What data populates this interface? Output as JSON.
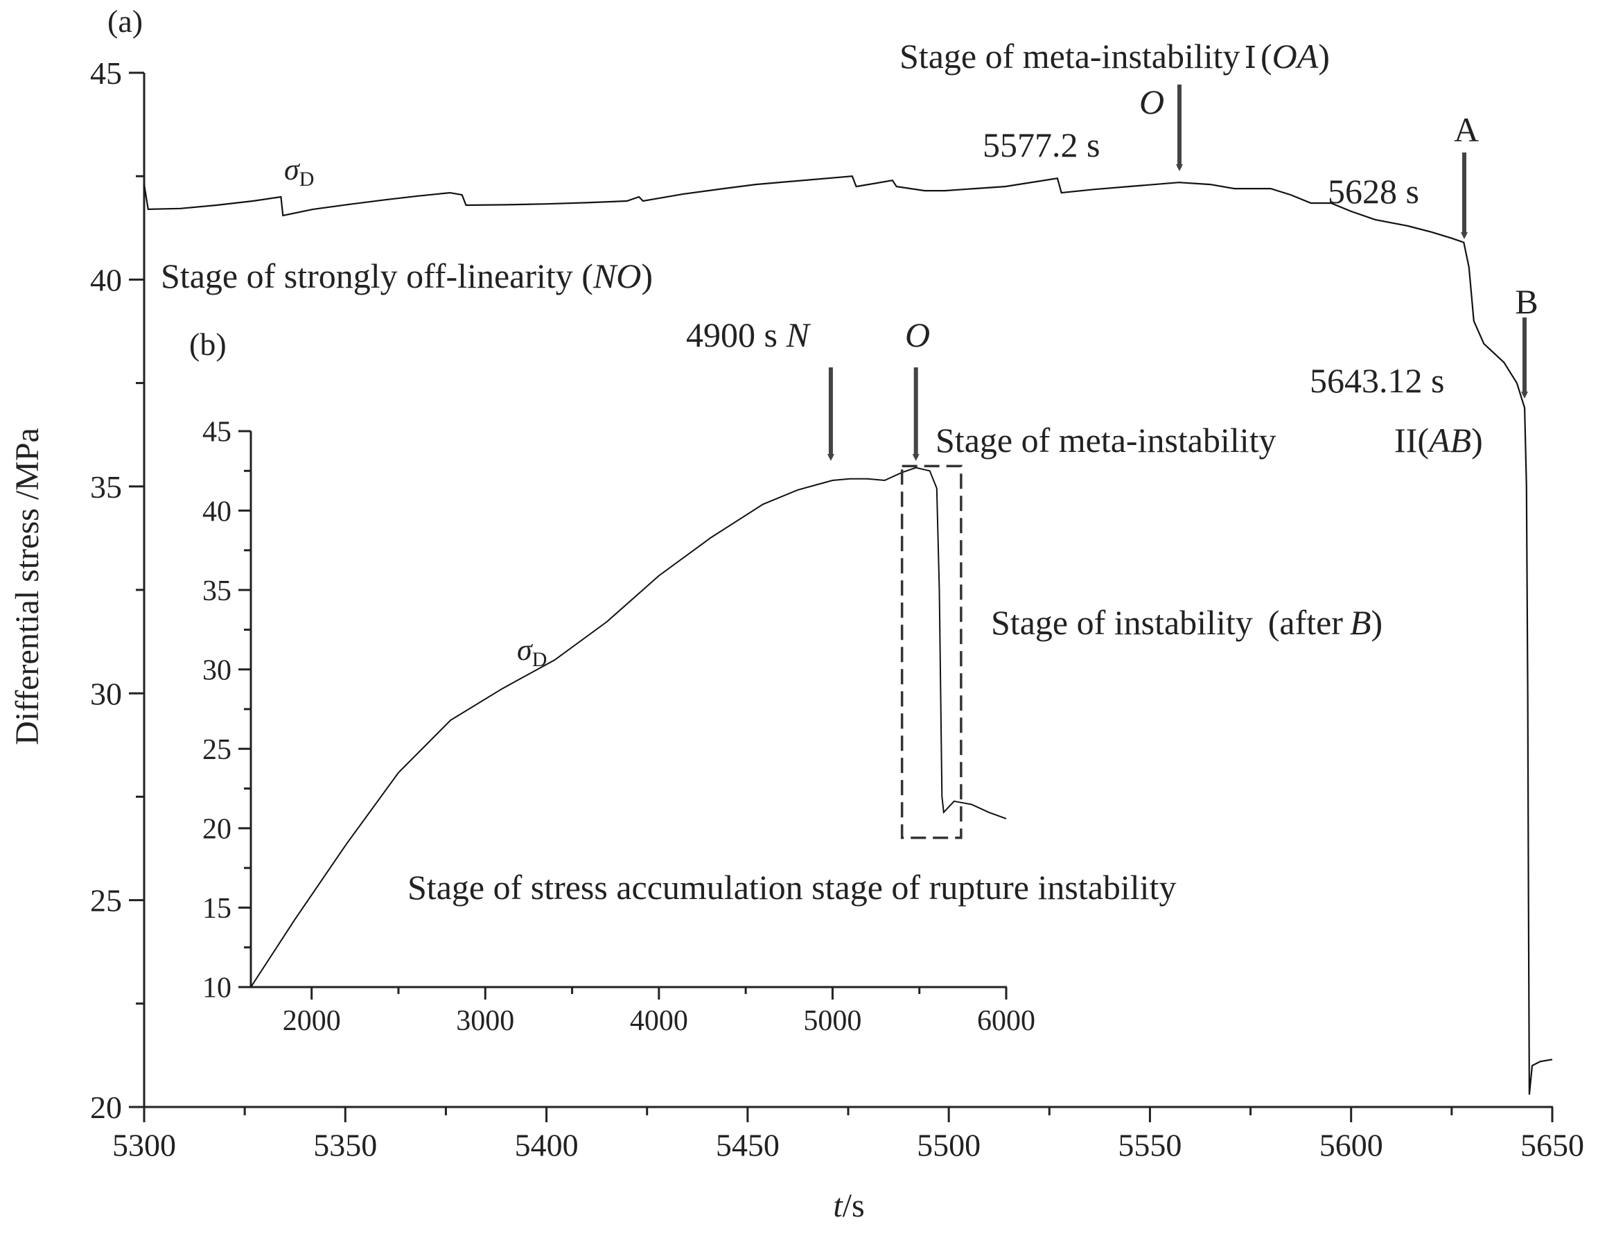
{
  "chart_data": [
    {
      "id": "a",
      "type": "line",
      "panel_label": "(a)",
      "xlabel_italic": "t",
      "xlabel_unit": "/s",
      "ylabel": "Differential stress /MPa",
      "xlim": [
        5300,
        5650
      ],
      "ylim": [
        20,
        45
      ],
      "x_ticks": [
        "5300",
        "5350",
        "5400",
        "5450",
        "5500",
        "5550",
        "5600",
        "5650"
      ],
      "x_tick_values": [
        5300,
        5350,
        5400,
        5450,
        5500,
        5550,
        5600,
        5650
      ],
      "y_ticks": [
        "20",
        "25",
        "30",
        "35",
        "40",
        "45"
      ],
      "y_tick_values": [
        20,
        25,
        30,
        35,
        40,
        45
      ],
      "series": [
        {
          "name": "σD",
          "x": [
            5300,
            5301,
            5309,
            5318,
            5327,
            5334,
            5334.5,
            5342,
            5351,
            5360,
            5368,
            5376,
            5379,
            5380,
            5390,
            5400,
            5410,
            5420,
            5423,
            5424,
            5434,
            5444,
            5452,
            5476,
            5477,
            5486,
            5487,
            5494,
            5499,
            5514,
            5527,
            5528,
            5536,
            5546,
            5557.2,
            5565,
            5571,
            5580,
            5585,
            5590,
            5595,
            5600,
            5606,
            5614,
            5620,
            5625,
            5628,
            5629.3,
            5630.5,
            5633,
            5638,
            5641.2,
            5643.12,
            5643.6,
            5643.9,
            5644.1,
            5644.3,
            5645,
            5647,
            5650
          ],
          "y": [
            42.3,
            41.7,
            41.72,
            41.8,
            41.9,
            42.0,
            41.55,
            41.7,
            41.82,
            41.93,
            42.02,
            42.1,
            42.05,
            41.8,
            41.81,
            41.83,
            41.86,
            41.9,
            42.0,
            41.9,
            42.07,
            42.2,
            42.3,
            42.5,
            42.25,
            42.4,
            42.25,
            42.15,
            42.15,
            42.25,
            42.45,
            42.1,
            42.18,
            42.26,
            42.35,
            42.3,
            42.2,
            42.2,
            42.05,
            41.85,
            41.85,
            41.65,
            41.45,
            41.3,
            41.15,
            41.0,
            40.9,
            40.3,
            39.0,
            38.45,
            38.0,
            37.5,
            36.9,
            35.0,
            30.0,
            25.0,
            20.3,
            21.0,
            21.1,
            21.15
          ]
        }
      ],
      "annotations": {
        "sigma_symbol": "σ",
        "sigma_sub": "D",
        "stage_no_text": "Stage of strongly off-linearity",
        "stage_no_paren": "(",
        "stage_no_letters": "NO",
        "stage_no_paren_close": ")",
        "stage_oa_text": "Stage of meta-instability",
        "stage_oa_roman": "Ⅰ",
        "stage_oa_paren": "(",
        "stage_oa_letters": "OA",
        "stage_oa_paren_close": ")",
        "stage_ab_text": "Stage of meta-instability",
        "stage_ab_roman": "II",
        "stage_ab_paren": "(",
        "stage_ab_letters": "AB",
        "stage_ab_paren_close": ")",
        "stage_instab_text": "Stage of instability",
        "stage_instab_after": "(after",
        "stage_instab_letter": "B",
        "stage_instab_close": ")",
        "point_o_letter": "O",
        "point_o_time": "5577.2 s",
        "point_a_letter": "A",
        "point_a_time": "5628 s",
        "point_b_letter": "B",
        "point_b_time": "5643.12 s"
      }
    },
    {
      "id": "b",
      "type": "line",
      "panel_label": "(b)",
      "xlim": [
        1650,
        6000
      ],
      "ylim": [
        10,
        45
      ],
      "x_ticks": [
        "2000",
        "3000",
        "4000",
        "5000",
        "6000"
      ],
      "x_tick_values": [
        2000,
        3000,
        4000,
        5000,
        6000
      ],
      "y_ticks": [
        "10",
        "15",
        "20",
        "25",
        "30",
        "35",
        "40",
        "45"
      ],
      "y_tick_values": [
        10,
        15,
        20,
        25,
        30,
        35,
        40,
        45
      ],
      "series": [
        {
          "name": "σD",
          "x": [
            1650,
            1900,
            2200,
            2500,
            2800,
            3100,
            3400,
            3700,
            4000,
            4300,
            4600,
            4800,
            4900,
            5000,
            5100,
            5200,
            5300,
            5400,
            5480,
            5560,
            5600,
            5615,
            5630,
            5640,
            5700,
            5750,
            5800,
            5900,
            6000
          ],
          "y": [
            10,
            14.2,
            19.0,
            23.5,
            26.8,
            28.8,
            30.6,
            33.0,
            35.9,
            38.3,
            40.4,
            41.3,
            41.6,
            41.9,
            42.0,
            42.0,
            41.9,
            42.4,
            42.7,
            42.5,
            41.4,
            35.0,
            22.0,
            21.0,
            21.7,
            21.6,
            21.5,
            21.0,
            20.6
          ]
        }
      ],
      "annotations": {
        "sigma_symbol": "σ",
        "sigma_sub": "D",
        "point_n_time": "4900 s",
        "point_n_letter": "N",
        "point_o_letter": "O",
        "dashed_box_x": [
          5400,
          5740
        ],
        "dashed_box_y": [
          19.4,
          42.8
        ],
        "arrow_n_x": 4990,
        "arrow_o_x": 5480,
        "bottom_text": "Stage of stress accumulation stage of rupture instability"
      }
    }
  ]
}
